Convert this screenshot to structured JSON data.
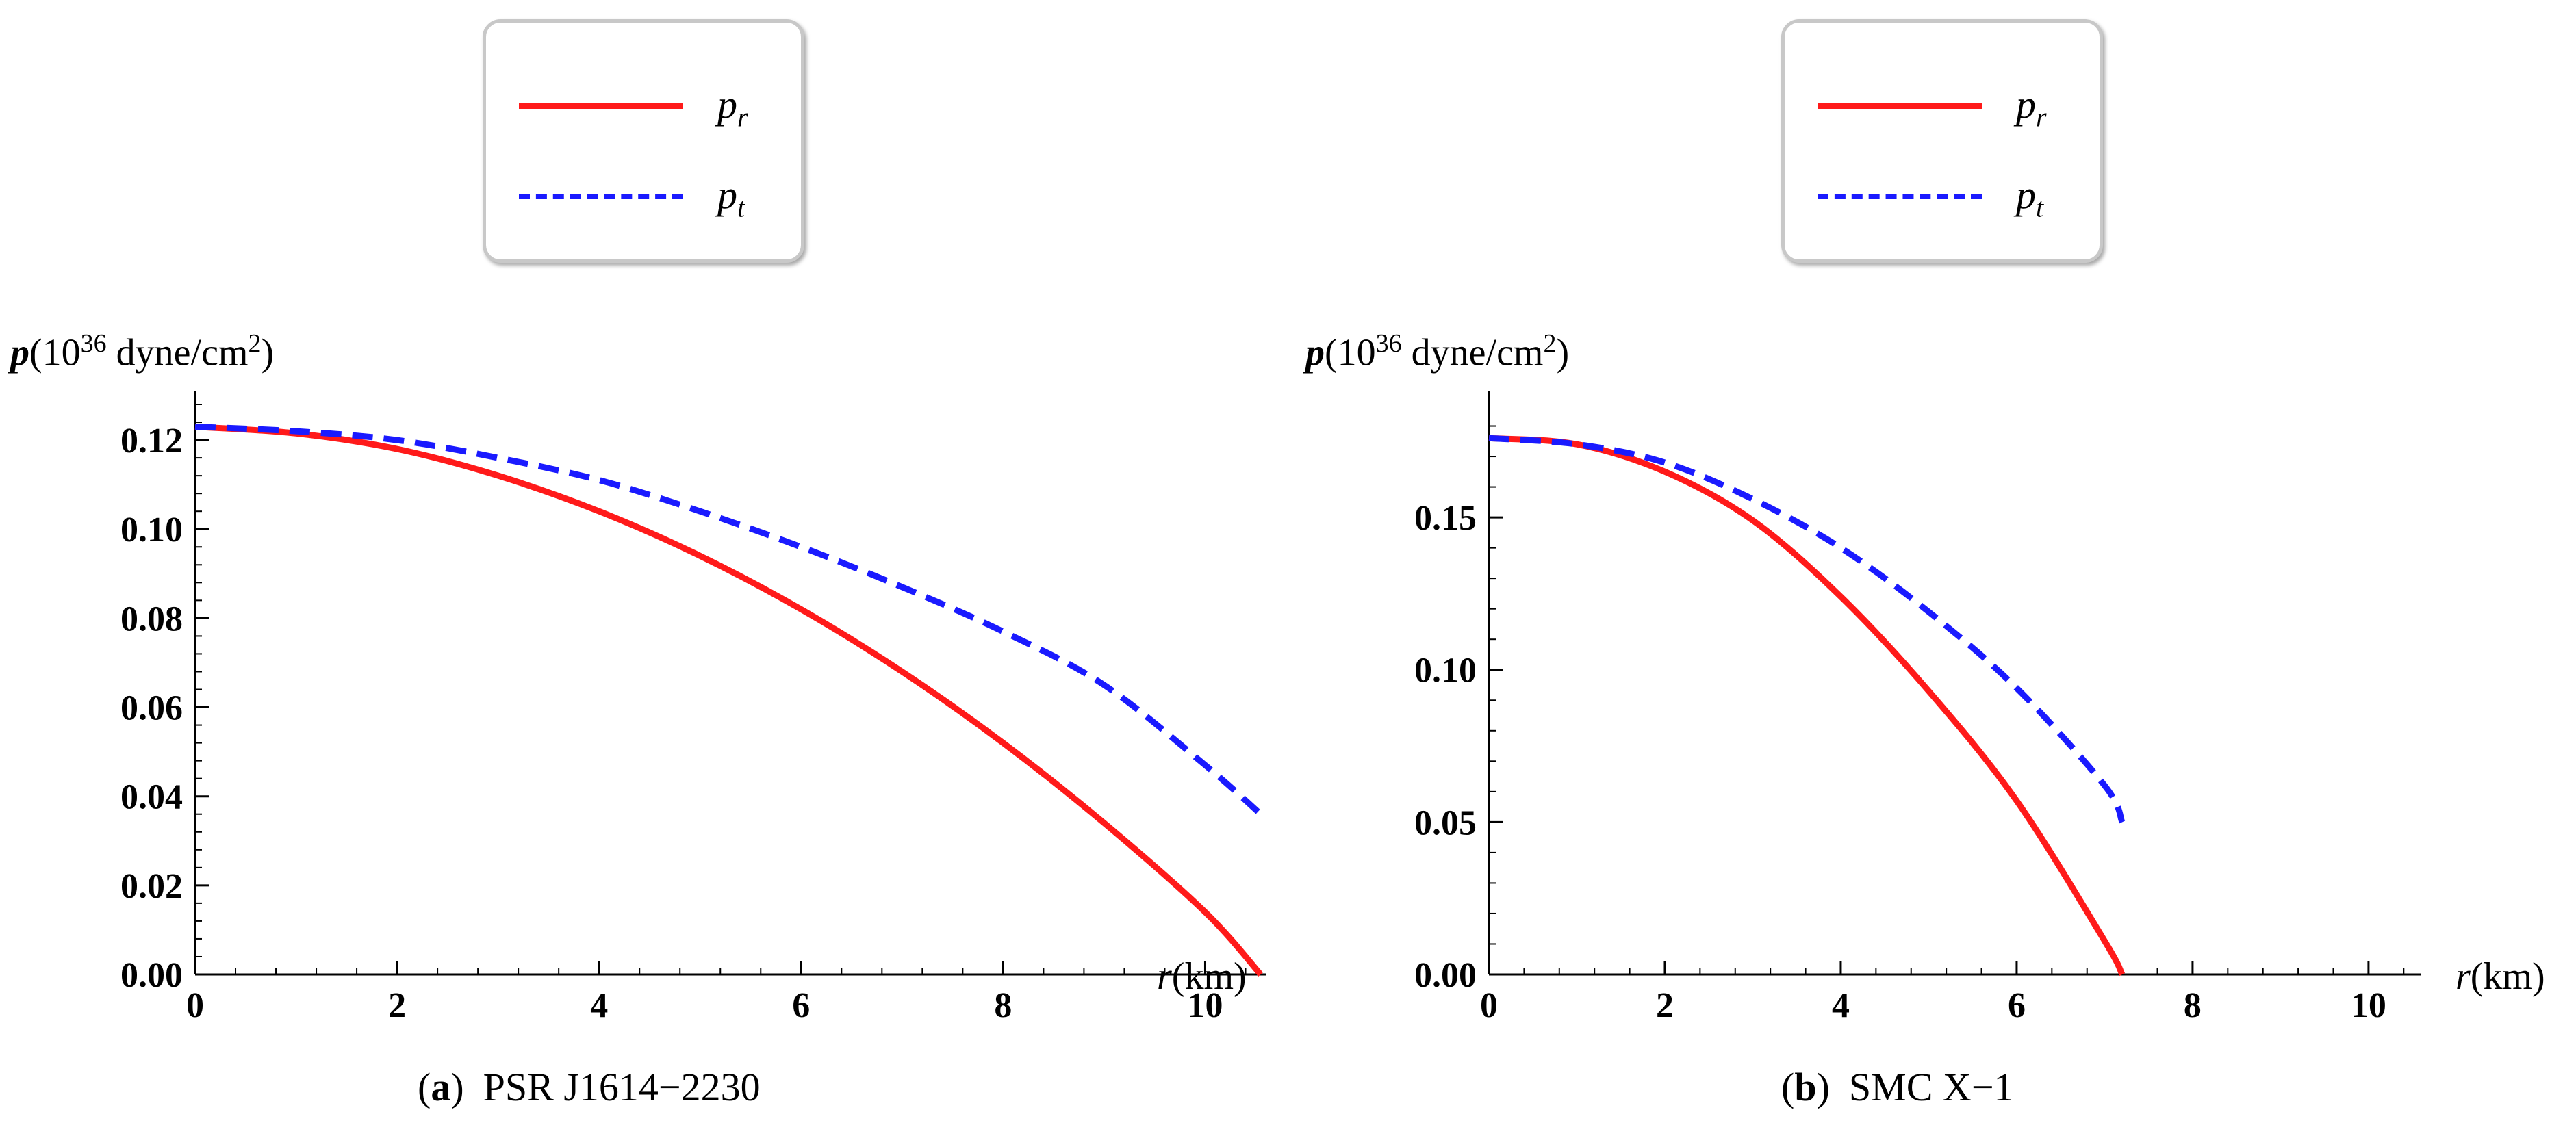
{
  "chart_data": [
    {
      "type": "line",
      "title": "",
      "caption": {
        "letter": "a",
        "text": "PSR J1614−2230"
      },
      "xlabel": {
        "var": "r",
        "unit": "(km)"
      },
      "ylabel": {
        "var": "p",
        "prefix": "(10",
        "exp": "36",
        "mid": " dyne/cm",
        "sq": "2",
        "suffix": ")"
      },
      "xlim": [
        0,
        10.6
      ],
      "ylim": [
        0,
        0.13
      ],
      "xticks": [
        0,
        2,
        4,
        6,
        8,
        10
      ],
      "xtick_labels": [
        "0",
        "2",
        "4",
        "6",
        "8",
        "10"
      ],
      "yticks": [
        0.0,
        0.02,
        0.04,
        0.06,
        0.08,
        0.1,
        0.12
      ],
      "ytick_labels": [
        "0.00",
        "0.02",
        "0.04",
        "0.06",
        "0.08",
        "0.10",
        "0.12"
      ],
      "legend": {
        "position": "top-center",
        "entries": [
          {
            "name": "p",
            "sub": "r"
          },
          {
            "name": "p",
            "sub": "t"
          }
        ]
      },
      "series": [
        {
          "name": "p_r",
          "style": "solid",
          "color": "#ff1a1a",
          "x": [
            0,
            1,
            2,
            3,
            4,
            5,
            6,
            7,
            8,
            9,
            10,
            10.55
          ],
          "y": [
            0.123,
            0.1215,
            0.118,
            0.112,
            0.104,
            0.094,
            0.082,
            0.068,
            0.052,
            0.034,
            0.014,
            0.0
          ]
        },
        {
          "name": "p_t",
          "style": "dashed",
          "color": "#1a1aff",
          "x": [
            0,
            1,
            2,
            3,
            4,
            5,
            6,
            7,
            8,
            9,
            10,
            10.55
          ],
          "y": [
            0.123,
            0.122,
            0.12,
            0.116,
            0.111,
            0.104,
            0.096,
            0.087,
            0.077,
            0.065,
            0.047,
            0.036
          ]
        }
      ]
    },
    {
      "type": "line",
      "title": "",
      "caption": {
        "letter": "b",
        "text": "SMC X−1"
      },
      "xlabel": {
        "var": "r",
        "unit": "(km)"
      },
      "ylabel": {
        "var": "p",
        "prefix": "(10",
        "exp": "36",
        "mid": " dyne/cm",
        "sq": "2",
        "suffix": ")"
      },
      "xlim": [
        0,
        10.6
      ],
      "ylim": [
        0,
        0.19
      ],
      "xticks": [
        0,
        2,
        4,
        6,
        8,
        10
      ],
      "xtick_labels": [
        "0",
        "2",
        "4",
        "6",
        "8",
        "10"
      ],
      "yticks": [
        0.0,
        0.05,
        0.1,
        0.15
      ],
      "ytick_labels": [
        "0.00",
        "0.05",
        "0.10",
        "0.15"
      ],
      "legend": {
        "position": "top-center",
        "entries": [
          {
            "name": "p",
            "sub": "r"
          },
          {
            "name": "p",
            "sub": "t"
          }
        ]
      },
      "series": [
        {
          "name": "p_r",
          "style": "solid",
          "color": "#ff1a1a",
          "x": [
            0,
            1,
            2,
            3,
            4,
            5,
            6,
            7,
            7.2
          ],
          "y": [
            0.176,
            0.174,
            0.165,
            0.149,
            0.124,
            0.093,
            0.057,
            0.011,
            0.0
          ]
        },
        {
          "name": "p_t",
          "style": "dashed",
          "color": "#1a1aff",
          "x": [
            0,
            1,
            2,
            3,
            4,
            5,
            6,
            7,
            7.2
          ],
          "y": [
            0.176,
            0.174,
            0.168,
            0.156,
            0.14,
            0.119,
            0.094,
            0.062,
            0.05
          ]
        }
      ]
    }
  ]
}
